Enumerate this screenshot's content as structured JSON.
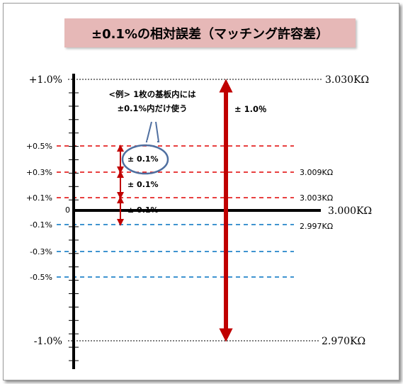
{
  "title": "±0.1%の相対誤差（マッチング許容差）",
  "axis": {
    "zero_label": "0",
    "left_labels": [
      {
        "value": 1.0,
        "text": "+1.0%"
      },
      {
        "value": 0.5,
        "text": "+0.5%"
      },
      {
        "value": 0.3,
        "text": "+0.3%"
      },
      {
        "value": 0.1,
        "text": "+0.1%"
      },
      {
        "value": -0.1,
        "text": "-0.1%"
      },
      {
        "value": -0.3,
        "text": "-0.3%"
      },
      {
        "value": -0.5,
        "text": "-0.5%"
      },
      {
        "value": -1.0,
        "text": "-1.0%"
      }
    ],
    "right_labels": [
      {
        "value": 1.0,
        "text": "3.030KΩ"
      },
      {
        "value": 0.3,
        "text": "3.009KΩ"
      },
      {
        "value": 0.1,
        "text": "3.003KΩ"
      },
      {
        "value": 0.0,
        "text": "3.000KΩ"
      },
      {
        "value": -0.1,
        "text": "2.997KΩ"
      },
      {
        "value": -1.0,
        "text": "2.970KΩ"
      }
    ]
  },
  "arrows": {
    "big_label": "± 1.0％",
    "small_labels": [
      "± 0.1%",
      "± 0.1%",
      "± 0.1%"
    ]
  },
  "callout": {
    "line1": "<例> 1枚の基板内には",
    "line2": "±0.1%内だけ使う"
  },
  "colors": {
    "red": "#c00000",
    "red_dash": "#e00000",
    "blue_dash": "#0070c0",
    "axis": "#000000",
    "callout_border": "#4f6fa0",
    "title_bg": "#e6b8b7"
  }
}
